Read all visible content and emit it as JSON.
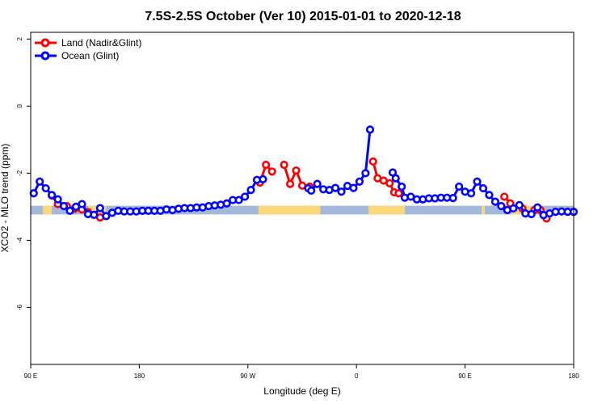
{
  "chart_data": {
    "type": "line",
    "title": "7.5S-2.5S October (Ver 10)   2015-01-01 to 2020-12-18",
    "xlabel": "Longitude (deg E)",
    "ylabel": "XCO2 - MLO trend (ppm)",
    "xlim": [
      90,
      450
    ],
    "ylim": [
      -7.7,
      2.2
    ],
    "x_ticks": [
      {
        "value": 90,
        "label": "90 E"
      },
      {
        "value": 162,
        "label": "180"
      },
      {
        "value": 234,
        "label": "90 W"
      },
      {
        "value": 306,
        "label": "0"
      },
      {
        "value": 378,
        "label": "90 E"
      },
      {
        "value": 450,
        "label": "180"
      }
    ],
    "y_ticks": [
      {
        "value": 2,
        "label": "2"
      },
      {
        "value": 0,
        "label": "0"
      },
      {
        "value": -2,
        "label": "-2"
      },
      {
        "value": -4,
        "label": "-4"
      },
      {
        "value": -6,
        "label": "-6"
      }
    ],
    "grid": false,
    "legend_position": "top-left",
    "band": {
      "y_low": -3.23,
      "y_high": -2.97,
      "ocean_color": "#a3b9dc",
      "land_color": "#fad87a"
    },
    "land_segments": [
      [
        98,
        104
      ],
      [
        128,
        140
      ],
      [
        241,
        282
      ],
      [
        314,
        338
      ],
      [
        389,
        391
      ],
      [
        409,
        425
      ]
    ],
    "series": [
      {
        "name": "Land (Nadir&Glint)",
        "color": "#ff0000",
        "points": [
          [
            104,
            -2.67
          ],
          [
            108,
            -2.92
          ],
          [
            114,
            -2.98
          ],
          [
            119,
            -3.06
          ],
          [
            124,
            -3.08
          ],
          [
            128,
            -3.16
          ],
          [
            136,
            -3.32
          ],
          [
            242,
            -2.28
          ],
          [
            246,
            -1.75
          ],
          [
            250,
            -1.95
          ],
          [
            258,
            -1.75
          ],
          [
            262,
            -2.32
          ],
          [
            266,
            -1.92
          ],
          [
            270,
            -2.37
          ],
          [
            275,
            -2.4
          ],
          [
            317,
            -1.65
          ],
          [
            320,
            -2.15
          ],
          [
            324,
            -2.22
          ],
          [
            328,
            -2.3
          ],
          [
            331,
            -2.57
          ],
          [
            334,
            -2.6
          ],
          [
            404,
            -2.7
          ],
          [
            408,
            -2.9
          ],
          [
            416,
            -3.05
          ],
          [
            424,
            -3.1
          ],
          [
            428,
            -3.1
          ],
          [
            432,
            -3.35
          ]
        ]
      },
      {
        "name": "Ocean (Glint)",
        "color": "#0000ff",
        "points": [
          [
            92,
            -2.6
          ],
          [
            96,
            -2.25
          ],
          [
            100,
            -2.45
          ],
          [
            104,
            -2.65
          ],
          [
            108,
            -2.78
          ],
          [
            112,
            -2.98
          ],
          [
            116,
            -3.12
          ],
          [
            120,
            -3.0
          ],
          [
            124,
            -2.92
          ],
          [
            128,
            -3.22
          ],
          [
            132,
            -3.24
          ],
          [
            136,
            -3.04
          ],
          [
            140,
            -3.28
          ],
          [
            144,
            -3.18
          ],
          [
            148,
            -3.12
          ],
          [
            152,
            -3.14
          ],
          [
            156,
            -3.14
          ],
          [
            160,
            -3.14
          ],
          [
            164,
            -3.12
          ],
          [
            168,
            -3.12
          ],
          [
            172,
            -3.12
          ],
          [
            176,
            -3.12
          ],
          [
            180,
            -3.08
          ],
          [
            184,
            -3.1
          ],
          [
            188,
            -3.06
          ],
          [
            192,
            -3.04
          ],
          [
            196,
            -3.04
          ],
          [
            200,
            -3.02
          ],
          [
            204,
            -3.02
          ],
          [
            208,
            -2.98
          ],
          [
            212,
            -2.96
          ],
          [
            216,
            -2.94
          ],
          [
            220,
            -2.9
          ],
          [
            224,
            -2.8
          ],
          [
            228,
            -2.8
          ],
          [
            232,
            -2.7
          ],
          [
            236,
            -2.5
          ],
          [
            240,
            -2.2
          ],
          [
            244,
            -2.18
          ],
          [
            274,
            -2.45
          ],
          [
            276,
            -2.52
          ],
          [
            280,
            -2.32
          ],
          [
            284,
            -2.48
          ],
          [
            288,
            -2.5
          ],
          [
            292,
            -2.44
          ],
          [
            296,
            -2.55
          ],
          [
            300,
            -2.38
          ],
          [
            304,
            -2.44
          ],
          [
            308,
            -2.25
          ],
          [
            312,
            -2.0
          ],
          [
            315,
            -0.7
          ],
          [
            330,
            -1.98
          ],
          [
            332,
            -2.15
          ],
          [
            336,
            -2.4
          ],
          [
            338,
            -2.73
          ],
          [
            342,
            -2.7
          ],
          [
            346,
            -2.78
          ],
          [
            350,
            -2.78
          ],
          [
            354,
            -2.75
          ],
          [
            358,
            -2.75
          ],
          [
            362,
            -2.73
          ],
          [
            366,
            -2.73
          ],
          [
            370,
            -2.74
          ],
          [
            374,
            -2.4
          ],
          [
            378,
            -2.55
          ],
          [
            382,
            -2.6
          ],
          [
            386,
            -2.25
          ],
          [
            390,
            -2.45
          ],
          [
            394,
            -2.65
          ],
          [
            398,
            -2.85
          ],
          [
            402,
            -2.98
          ],
          [
            406,
            -3.1
          ],
          [
            410,
            -3.05
          ],
          [
            414,
            -2.95
          ],
          [
            418,
            -3.2
          ],
          [
            422,
            -3.22
          ],
          [
            426,
            -3.02
          ],
          [
            430,
            -3.25
          ],
          [
            434,
            -3.2
          ],
          [
            438,
            -3.15
          ],
          [
            442,
            -3.14
          ],
          [
            446,
            -3.15
          ],
          [
            450,
            -3.15
          ]
        ]
      }
    ]
  }
}
